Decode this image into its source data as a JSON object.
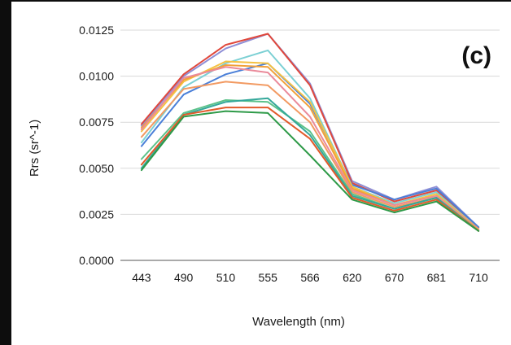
{
  "chart_data": {
    "type": "line",
    "panel_label": "(c)",
    "xlabel": "Wavelength (nm)",
    "ylabel": "Rrs (sr^-1)",
    "categories": [
      "443",
      "490",
      "510",
      "555",
      "566",
      "620",
      "670",
      "681",
      "710"
    ],
    "y_ticks": [
      "0.0000",
      "0.0025",
      "0.0050",
      "0.0075",
      "0.0100",
      "0.0125"
    ],
    "ylim": [
      0,
      0.0125
    ],
    "grid": "horizontal",
    "legend": "none",
    "series": [
      {
        "color": "#8f8fd6",
        "values": [
          0.0073,
          0.01,
          0.0115,
          0.0123,
          0.0096,
          0.0043,
          0.0033,
          0.004,
          0.0018
        ]
      },
      {
        "color": "#e0483c",
        "values": [
          0.0074,
          0.0101,
          0.0117,
          0.0123,
          0.0095,
          0.0042,
          0.0032,
          0.0038,
          0.0018
        ]
      },
      {
        "color": "#4a7fd8",
        "values": [
          0.0062,
          0.009,
          0.0101,
          0.0107,
          0.0085,
          0.0041,
          0.0033,
          0.0039,
          0.0018
        ]
      },
      {
        "color": "#7cd0d4",
        "values": [
          0.0064,
          0.0094,
          0.0107,
          0.0114,
          0.0088,
          0.004,
          0.0031,
          0.0037,
          0.0017
        ]
      },
      {
        "color": "#f5c242",
        "values": [
          0.007,
          0.0097,
          0.0108,
          0.0107,
          0.0086,
          0.004,
          0.003,
          0.0036,
          0.0017
        ]
      },
      {
        "color": "#f2a03a",
        "values": [
          0.0072,
          0.0098,
          0.0106,
          0.0105,
          0.0083,
          0.0039,
          0.003,
          0.0035,
          0.0017
        ]
      },
      {
        "color": "#ea8a9a",
        "values": [
          0.0071,
          0.0099,
          0.0105,
          0.0102,
          0.0078,
          0.0038,
          0.003,
          0.0035,
          0.0017
        ]
      },
      {
        "color": "#f29a62",
        "values": [
          0.0067,
          0.0093,
          0.0097,
          0.0095,
          0.0075,
          0.0037,
          0.0029,
          0.0034,
          0.0017
        ]
      },
      {
        "color": "#5cc28a",
        "values": [
          0.0055,
          0.008,
          0.0087,
          0.0086,
          0.007,
          0.0036,
          0.0028,
          0.0034,
          0.0016
        ]
      },
      {
        "color": "#34a89a",
        "values": [
          0.005,
          0.0079,
          0.0086,
          0.0088,
          0.0068,
          0.0035,
          0.0028,
          0.0034,
          0.0016
        ]
      },
      {
        "color": "#e25a2a",
        "values": [
          0.0052,
          0.0079,
          0.0083,
          0.0083,
          0.0066,
          0.0034,
          0.0027,
          0.0033,
          0.0016
        ]
      },
      {
        "color": "#2e9a48",
        "values": [
          0.0049,
          0.0078,
          0.0081,
          0.008,
          0.0057,
          0.0033,
          0.0026,
          0.0032,
          0.0016
        ]
      }
    ]
  }
}
